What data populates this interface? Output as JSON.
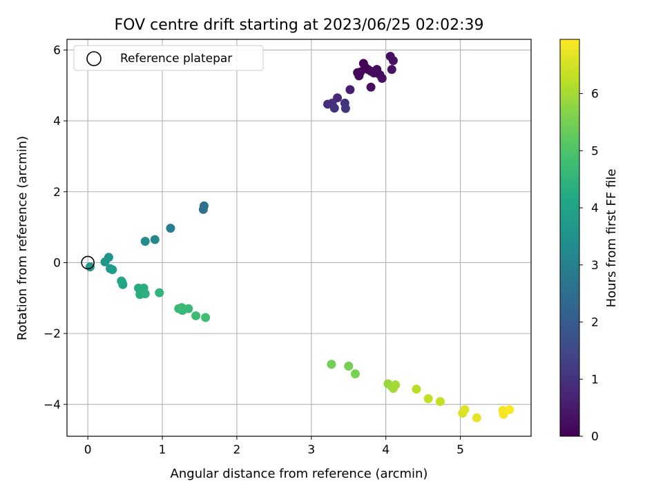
{
  "chart_data": {
    "type": "scatter",
    "title": "FOV centre drift starting at 2023/06/25 02:02:39",
    "xlabel": "Angular distance from reference (arcmin)",
    "ylabel": "Rotation from reference (arcmin)",
    "xlim": [
      -0.28,
      5.95
    ],
    "ylim": [
      -4.9,
      6.3
    ],
    "xticks": [
      0,
      1,
      2,
      3,
      4,
      5
    ],
    "yticks": [
      -4,
      -2,
      0,
      2,
      4,
      6
    ],
    "grid": true,
    "legend": {
      "position": "top-left",
      "entries": [
        "Reference platepar"
      ]
    },
    "reference_point": {
      "x": 0,
      "y": 0
    },
    "colorbar": {
      "label": "Hours from first FF file",
      "min": 0,
      "max": 6.95,
      "ticks": [
        0,
        1,
        2,
        3,
        4,
        5,
        6
      ],
      "colormap": "viridis"
    },
    "points": [
      {
        "x": 3.7,
        "y": 5.62,
        "c": 0.0
      },
      {
        "x": 3.72,
        "y": 5.52,
        "c": 0.02
      },
      {
        "x": 3.76,
        "y": 5.45,
        "c": 0.05
      },
      {
        "x": 3.66,
        "y": 5.38,
        "c": 0.08
      },
      {
        "x": 3.62,
        "y": 5.36,
        "c": 0.1
      },
      {
        "x": 3.64,
        "y": 5.27,
        "c": 0.12
      },
      {
        "x": 3.8,
        "y": 5.4,
        "c": 0.15
      },
      {
        "x": 3.84,
        "y": 5.35,
        "c": 0.18
      },
      {
        "x": 3.88,
        "y": 5.45,
        "c": 0.2
      },
      {
        "x": 3.92,
        "y": 5.3,
        "c": 0.22
      },
      {
        "x": 3.95,
        "y": 5.2,
        "c": 0.25
      },
      {
        "x": 3.8,
        "y": 4.95,
        "c": 0.28
      },
      {
        "x": 4.06,
        "y": 5.82,
        "c": 0.3
      },
      {
        "x": 4.1,
        "y": 5.7,
        "c": 0.32
      },
      {
        "x": 4.08,
        "y": 5.45,
        "c": 0.35
      },
      {
        "x": 3.52,
        "y": 4.88,
        "c": 0.55
      },
      {
        "x": 3.35,
        "y": 4.65,
        "c": 0.8
      },
      {
        "x": 3.22,
        "y": 4.47,
        "c": 0.9
      },
      {
        "x": 3.28,
        "y": 4.5,
        "c": 0.95
      },
      {
        "x": 3.31,
        "y": 4.36,
        "c": 1.0
      },
      {
        "x": 3.45,
        "y": 4.5,
        "c": 1.05
      },
      {
        "x": 3.46,
        "y": 4.35,
        "c": 1.1
      },
      {
        "x": 1.56,
        "y": 1.6,
        "c": 2.55
      },
      {
        "x": 1.55,
        "y": 1.5,
        "c": 2.6
      },
      {
        "x": 1.11,
        "y": 0.97,
        "c": 2.95
      },
      {
        "x": 0.9,
        "y": 0.65,
        "c": 3.25
      },
      {
        "x": 0.77,
        "y": 0.6,
        "c": 3.3
      },
      {
        "x": 0.28,
        "y": 0.15,
        "c": 3.6
      },
      {
        "x": 0.23,
        "y": 0.02,
        "c": 3.65
      },
      {
        "x": 0.3,
        "y": -0.17,
        "c": 3.75
      },
      {
        "x": 0.33,
        "y": -0.2,
        "c": 3.8
      },
      {
        "x": 0.03,
        "y": -0.12,
        "c": 3.7
      },
      {
        "x": 0.46,
        "y": -0.55,
        "c": 4.0
      },
      {
        "x": 0.47,
        "y": -0.62,
        "c": 4.05
      },
      {
        "x": 0.45,
        "y": -0.52,
        "c": 4.1
      },
      {
        "x": 0.68,
        "y": -0.72,
        "c": 4.25
      },
      {
        "x": 0.75,
        "y": -0.72,
        "c": 4.3
      },
      {
        "x": 0.7,
        "y": -0.9,
        "c": 4.35
      },
      {
        "x": 0.77,
        "y": -0.88,
        "c": 4.4
      },
      {
        "x": 0.96,
        "y": -0.85,
        "c": 4.5
      },
      {
        "x": 1.22,
        "y": -1.3,
        "c": 4.6
      },
      {
        "x": 1.27,
        "y": -1.35,
        "c": 4.62
      },
      {
        "x": 1.35,
        "y": -1.3,
        "c": 4.65
      },
      {
        "x": 1.26,
        "y": -1.27,
        "c": 4.68
      },
      {
        "x": 1.45,
        "y": -1.5,
        "c": 4.75
      },
      {
        "x": 1.58,
        "y": -1.55,
        "c": 4.8
      },
      {
        "x": 3.27,
        "y": -2.87,
        "c": 5.45
      },
      {
        "x": 3.5,
        "y": -2.92,
        "c": 5.5
      },
      {
        "x": 3.59,
        "y": -3.14,
        "c": 5.55
      },
      {
        "x": 4.03,
        "y": -3.42,
        "c": 5.85
      },
      {
        "x": 4.08,
        "y": -3.5,
        "c": 5.9
      },
      {
        "x": 4.1,
        "y": -3.55,
        "c": 5.95
      },
      {
        "x": 4.13,
        "y": -3.45,
        "c": 6.0
      },
      {
        "x": 4.41,
        "y": -3.57,
        "c": 6.2
      },
      {
        "x": 4.57,
        "y": -3.84,
        "c": 6.3
      },
      {
        "x": 4.73,
        "y": -3.92,
        "c": 6.35
      },
      {
        "x": 5.03,
        "y": -4.25,
        "c": 6.55
      },
      {
        "x": 5.06,
        "y": -4.15,
        "c": 6.6
      },
      {
        "x": 5.22,
        "y": -4.38,
        "c": 6.7
      },
      {
        "x": 5.57,
        "y": -4.17,
        "c": 6.85
      },
      {
        "x": 5.58,
        "y": -4.28,
        "c": 6.88
      },
      {
        "x": 5.66,
        "y": -4.15,
        "c": 6.92
      }
    ]
  }
}
